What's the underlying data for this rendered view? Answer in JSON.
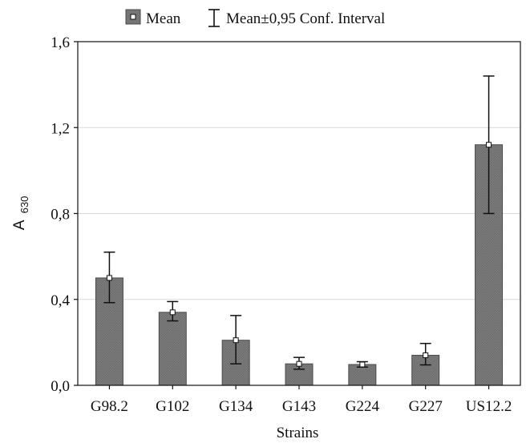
{
  "chart_data": {
    "type": "bar",
    "categories": [
      "G98.2",
      "G102",
      "G134",
      "G143",
      "G224",
      "G227",
      "US12.2"
    ],
    "series": [
      {
        "name": "Mean",
        "values": [
          0.5,
          0.34,
          0.21,
          0.1,
          0.097,
          0.14,
          1.12
        ],
        "ci_lower": [
          0.385,
          0.3,
          0.1,
          0.075,
          0.085,
          0.095,
          0.8
        ],
        "ci_upper": [
          0.62,
          0.39,
          0.325,
          0.13,
          0.11,
          0.195,
          1.44
        ]
      }
    ],
    "legend": {
      "mean_label": "Mean",
      "ci_label": "Mean±0,95 Conf. Interval",
      "placement": "top-center"
    },
    "xlabel": "Strains",
    "ylabel_main": "A",
    "ylabel_sub": "630",
    "ylim": [
      0,
      1.6
    ],
    "yticks": [
      0,
      0.4,
      0.8,
      1.2,
      1.6
    ],
    "ytick_labels": [
      "0,0",
      "0,4",
      "0,8",
      "1,2",
      "1,6"
    ],
    "grid": "horizontal",
    "colors": {
      "bar_fill": "#7b7b7b",
      "bar_stroke": "#4a4a4a",
      "grid": "#d9d9d9",
      "axis": "#111111"
    }
  }
}
